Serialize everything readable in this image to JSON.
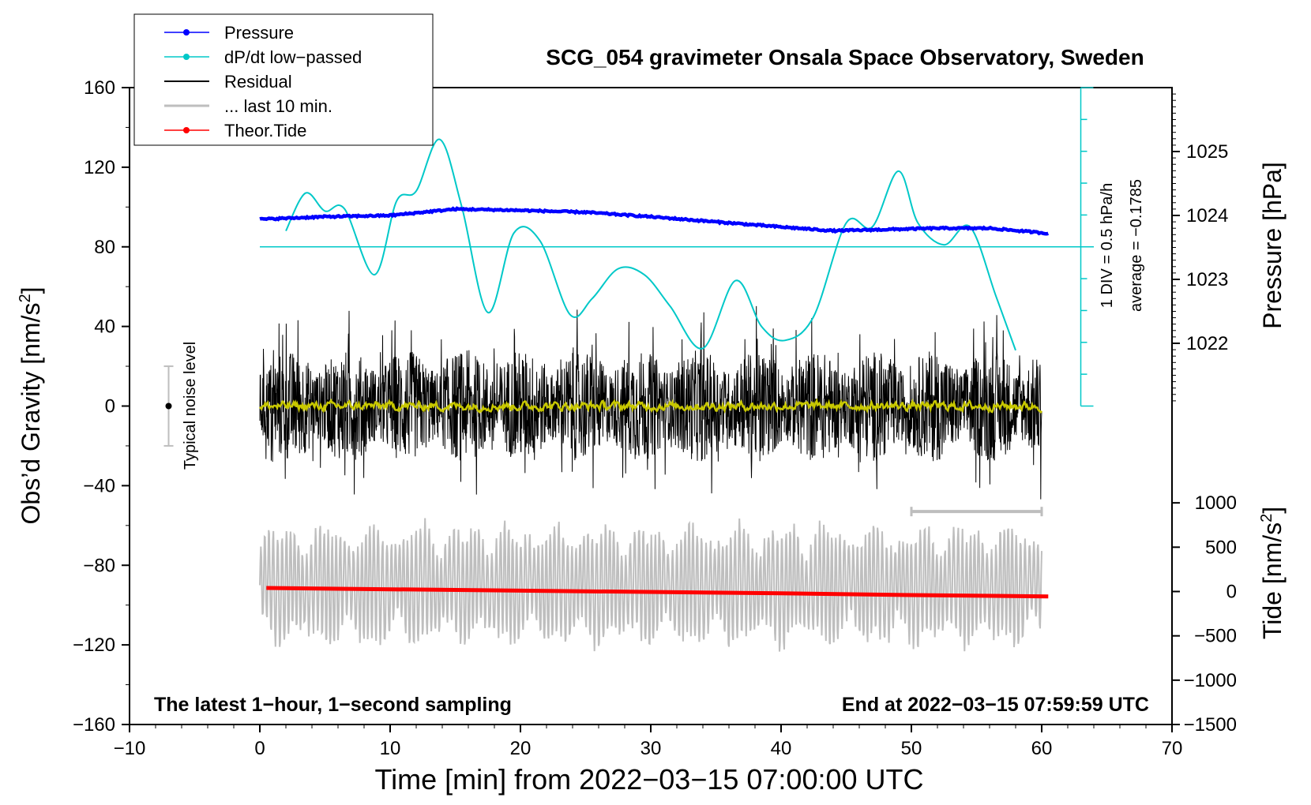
{
  "chart_data": {
    "type": "line",
    "title": "SCG_054 gravimeter Onsala Space Observatory, Sweden",
    "xlabel": "Time [min] from 2022−03−15 07:00:00 UTC",
    "ylabel_left": "Obs’d Gravity [nm/s",
    "ylabel_left_sup": "2",
    "ylabel_left_close": "]",
    "ylabel_right_pressure": "Pressure [hPa]",
    "ylabel_right_tide": "Tide [nm/s",
    "ylabel_right_tide_sup": "2",
    "ylabel_right_tide_close": "]",
    "xlim": [
      -10,
      70
    ],
    "ylim_left": [
      -160,
      160
    ],
    "pressure_lim": [
      1021,
      1026
    ],
    "tide_lim": [
      -1500,
      1500
    ],
    "x_ticks": [
      "−10",
      "0",
      "10",
      "20",
      "30",
      "40",
      "50",
      "60",
      "70"
    ],
    "y_ticks": [
      "−160",
      "−120",
      "−80",
      "−40",
      "0",
      "40",
      "80",
      "120",
      "160"
    ],
    "pressure_ticks": [
      "1022",
      "1023",
      "1024",
      "1025"
    ],
    "tide_ticks": [
      "−1500",
      "−1000",
      "−500",
      "0",
      "500",
      "1000"
    ],
    "pressure_tick_values": [
      1022,
      1023,
      1024,
      1025
    ],
    "tide_tick_values": [
      -1500,
      -1000,
      -500,
      0,
      500,
      1000
    ],
    "legend": [
      {
        "label": "Pressure",
        "color": "#0000ff",
        "marker": true
      },
      {
        "label": "dP/dt low−passed",
        "color": "#00c8c8",
        "marker": true
      },
      {
        "label": "Residual",
        "color": "#000000",
        "marker": false
      },
      {
        "label": "... last 10 min.",
        "color": "#bebebe",
        "marker": false
      },
      {
        "label": "Theor.Tide",
        "color": "#ff0000",
        "marker": true
      }
    ],
    "annotations": {
      "bottom_left": "The latest 1−hour, 1−second sampling",
      "bottom_right": "End at 2022−03−15 07:59:59 UTC",
      "noise_label": "Typical noise level",
      "dpdt_scale": "1 DIV = 0.5 hPa/h",
      "dpdt_average": "average = −0.1785"
    },
    "noise_bar": {
      "x": -7,
      "y": 0,
      "range": [
        -20,
        20
      ]
    },
    "last10_bar": {
      "x_range": [
        50,
        60
      ],
      "y": -53
    },
    "dpdt_zero_level": 80,
    "pressure_series": {
      "name": "Pressure",
      "color": "#0000ff",
      "x": [
        0,
        5,
        10,
        15,
        20,
        25,
        30,
        35,
        40,
        44,
        48,
        52,
        56,
        60.5
      ],
      "y": [
        1023.94,
        1023.98,
        1024.0,
        1024.1,
        1024.08,
        1024.05,
        1023.98,
        1023.9,
        1023.82,
        1023.76,
        1023.78,
        1023.8,
        1023.8,
        1023.72
      ]
    },
    "dpdt_series": {
      "name": "dP/dt low−passed",
      "color": "#00c8c8",
      "x": [
        2,
        3.5,
        5,
        6.5,
        8.8,
        10.5,
        12,
        13.8,
        15.5,
        17.5,
        19.5,
        21.5,
        23.8,
        25.5,
        27.5,
        29.5,
        31.5,
        34,
        36.5,
        38.5,
        40.3,
        42.5,
        45,
        47,
        49,
        50.5,
        52.5,
        54.5,
        56.5,
        58
      ],
      "y": [
        88,
        107,
        98,
        99,
        66,
        103,
        108,
        134,
        100,
        47,
        87,
        83,
        46,
        54,
        69,
        66,
        50,
        29,
        63,
        40,
        33,
        45,
        92,
        90,
        118,
        92,
        81,
        90,
        55,
        28
      ]
    },
    "tide_series": {
      "name": "Theor.Tide",
      "color": "#ff0000",
      "x": [
        0.5,
        20,
        40,
        50,
        60.5
      ],
      "y": [
        40,
        10,
        -20,
        -40,
        -55
      ]
    },
    "residual_series": {
      "name": "Residual",
      "color": "#000000",
      "x_range": [
        0,
        60
      ],
      "approx_amplitude": 28
    },
    "smoothed_series": {
      "name": "smoothed residual",
      "color": "#c8c800",
      "x_range": [
        0,
        60
      ],
      "approx_amplitude": 4
    },
    "last10_series": {
      "name": "... last 10 min.",
      "color": "#bebebe",
      "x_range": [
        0,
        60
      ],
      "y_center": -90,
      "approx_amplitude": 25
    }
  }
}
